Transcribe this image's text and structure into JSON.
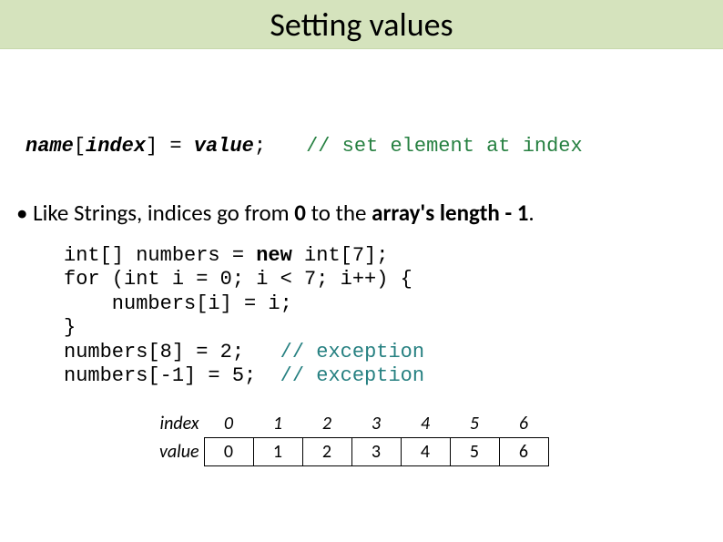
{
  "title": "Setting values",
  "syntax": {
    "lhs_name": "name",
    "lhs_open": "[",
    "lhs_index": "index",
    "lhs_close": "] = ",
    "lhs_value": "value",
    "lhs_semi": ";",
    "comment": "// set element at index"
  },
  "bullet": {
    "prefix": "• Like Strings, indices go from ",
    "zero": "0",
    "mid": " to the ",
    "bold_tail": "array's length - 1",
    "period": "."
  },
  "code": {
    "l1a": "int[] numbers = ",
    "l1b": "new",
    "l1c": " int[7];",
    "l2": "for (int i = 0; i < 7; i++) {",
    "l3": "    numbers[i] = i;",
    "l4": "}",
    "l5a": "numbers[8] = 2;",
    "l5b": "   // exception",
    "l6a": "numbers[-1] = 5;",
    "l6b": "  // exception"
  },
  "table": {
    "index_label": "index",
    "value_label": "value",
    "indices": [
      "0",
      "1",
      "2",
      "3",
      "4",
      "5",
      "6"
    ],
    "values": [
      "0",
      "1",
      "2",
      "3",
      "4",
      "5",
      "6"
    ]
  },
  "colors": {
    "title_bg": "#d5e3bd",
    "comment_green": "#268041",
    "exception_teal": "#268081",
    "text": "#000000",
    "bg": "#ffffff"
  }
}
